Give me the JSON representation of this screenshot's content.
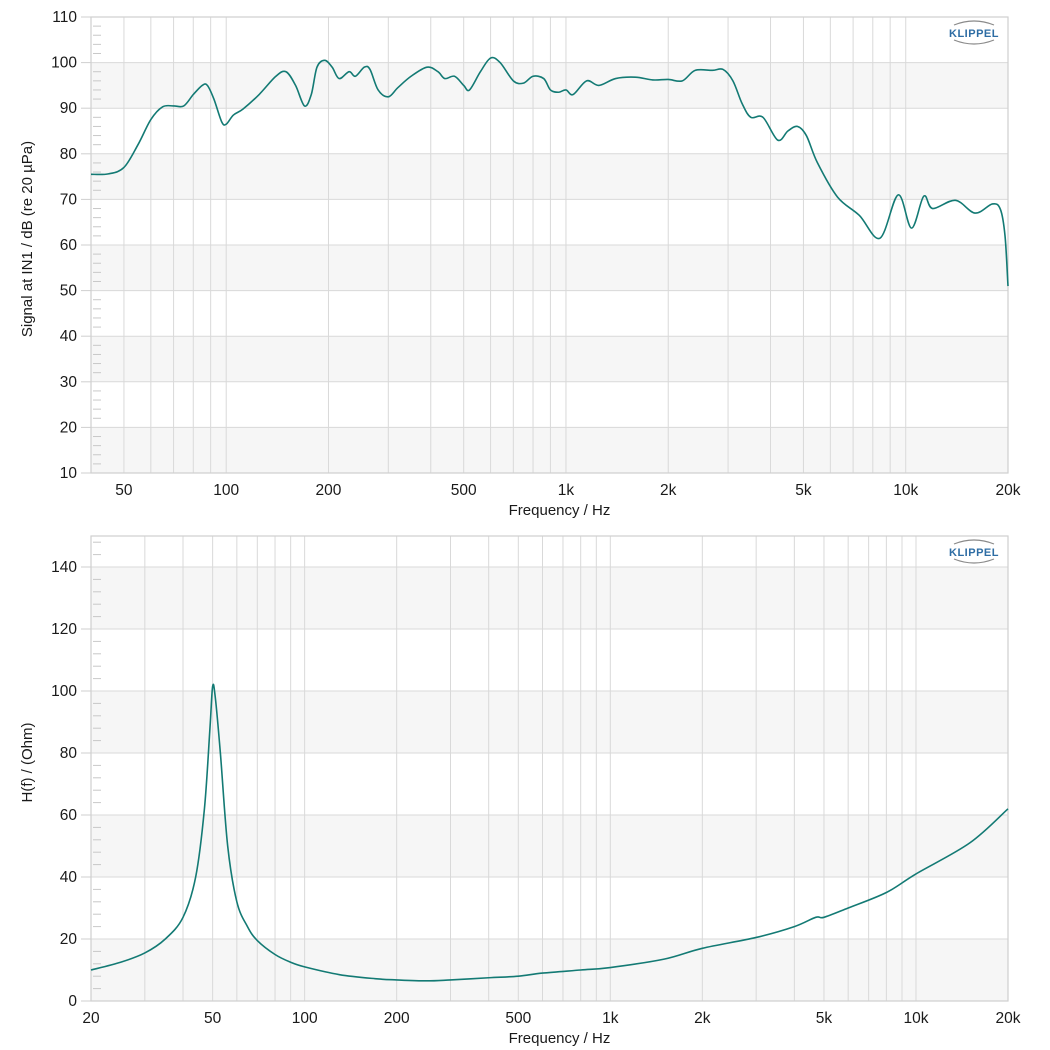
{
  "logo": {
    "text": "KLIPPEL",
    "color": "#2e6da4"
  },
  "style": {
    "line_color": "#137a74",
    "grid_color": "#d9d9d9",
    "band_color": "#f6f6f6",
    "axis_color": "#cfcfcf"
  },
  "chart_data": [
    {
      "id": "spl",
      "type": "line",
      "title": "",
      "xlabel": "Frequency / Hz",
      "ylabel": "Signal at IN1 / dB (re 20 µPa)",
      "xscale": "log",
      "xlim": [
        40,
        20000
      ],
      "ylim": [
        10,
        110
      ],
      "yticks": [
        10,
        20,
        30,
        40,
        50,
        60,
        70,
        80,
        90,
        100,
        110
      ],
      "xticks": [
        {
          "value": 50,
          "label": "50"
        },
        {
          "value": 100,
          "label": "100"
        },
        {
          "value": 200,
          "label": "200"
        },
        {
          "value": 500,
          "label": "500"
        },
        {
          "value": 1000,
          "label": "1k"
        },
        {
          "value": 2000,
          "label": "2k"
        },
        {
          "value": 5000,
          "label": "5k"
        },
        {
          "value": 10000,
          "label": "10k"
        },
        {
          "value": 20000,
          "label": "20k"
        }
      ],
      "grid": true,
      "legend": null,
      "series": [
        {
          "name": "SPL",
          "x": [
            40,
            45,
            50,
            55,
            60,
            65,
            70,
            75,
            80,
            85,
            88,
            92,
            97,
            100,
            105,
            112,
            125,
            140,
            150,
            160,
            170,
            178,
            185,
            195,
            205,
            215,
            230,
            240,
            255,
            265,
            280,
            300,
            320,
            350,
            390,
            420,
            440,
            470,
            500,
            520,
            560,
            600,
            640,
            700,
            750,
            800,
            860,
            900,
            950,
            1000,
            1050,
            1150,
            1250,
            1400,
            1600,
            1800,
            2000,
            2200,
            2400,
            2700,
            2900,
            3100,
            3300,
            3500,
            3800,
            4200,
            4500,
            4800,
            5100,
            5500,
            6300,
            7300,
            8400,
            9500,
            10400,
            11300,
            12000,
            14000,
            16000,
            18000,
            19000,
            19600,
            20000
          ],
          "y": [
            75.5,
            75.6,
            77,
            82,
            87.5,
            90.3,
            90.5,
            90.5,
            93,
            95,
            95,
            92,
            87,
            86.5,
            88.5,
            89.8,
            93,
            97,
            98,
            95,
            90.5,
            93,
            99,
            100.5,
            99,
            96.5,
            98,
            97,
            99,
            98.5,
            94,
            92.5,
            94.5,
            97,
            99,
            98,
            96.5,
            97,
            95,
            94,
            98,
            101,
            100,
            96,
            95.5,
            97,
            96.5,
            94,
            93.5,
            94,
            93,
            96,
            95,
            96.5,
            96.8,
            96.2,
            96.3,
            96,
            98.3,
            98.3,
            98.5,
            96,
            91,
            88,
            88,
            83,
            85,
            86,
            84,
            78,
            70.5,
            66.5,
            61.5,
            71,
            63.7,
            70.7,
            68,
            69.8,
            67,
            69,
            67.8,
            62,
            51
          ]
        }
      ]
    },
    {
      "id": "impedance",
      "type": "line",
      "title": "",
      "xlabel": "Frequency / Hz",
      "ylabel": "H(f) / (Ohm)",
      "xscale": "log",
      "xlim": [
        20,
        20000
      ],
      "ylim": [
        0,
        150
      ],
      "yticks": [
        0,
        20,
        40,
        60,
        80,
        100,
        120,
        140
      ],
      "xticks": [
        {
          "value": 20,
          "label": "20"
        },
        {
          "value": 50,
          "label": "50"
        },
        {
          "value": 100,
          "label": "100"
        },
        {
          "value": 200,
          "label": "200"
        },
        {
          "value": 500,
          "label": "500"
        },
        {
          "value": 1000,
          "label": "1k"
        },
        {
          "value": 2000,
          "label": "2k"
        },
        {
          "value": 5000,
          "label": "5k"
        },
        {
          "value": 10000,
          "label": "10k"
        },
        {
          "value": 20000,
          "label": "20k"
        }
      ],
      "grid": true,
      "legend": null,
      "series": [
        {
          "name": "Impedance",
          "x": [
            20,
            25,
            30,
            35,
            40,
            44,
            47,
            49,
            50,
            51,
            53,
            56,
            60,
            65,
            70,
            80,
            90,
            100,
            130,
            170,
            200,
            250,
            300,
            400,
            500,
            600,
            800,
            1000,
            1500,
            2000,
            3000,
            4000,
            4700,
            5000,
            6000,
            8000,
            10000,
            15000,
            20000
          ],
          "y": [
            10,
            12.5,
            15.5,
            20,
            27,
            40,
            62,
            88,
            101.5,
            98,
            80,
            50,
            32,
            24,
            19.5,
            15,
            12.5,
            11,
            8.5,
            7.2,
            6.8,
            6.5,
            6.8,
            7.5,
            8,
            9,
            10,
            10.8,
            13.5,
            17,
            20.5,
            24,
            27,
            27,
            30,
            35,
            41,
            51,
            62
          ]
        }
      ]
    }
  ]
}
